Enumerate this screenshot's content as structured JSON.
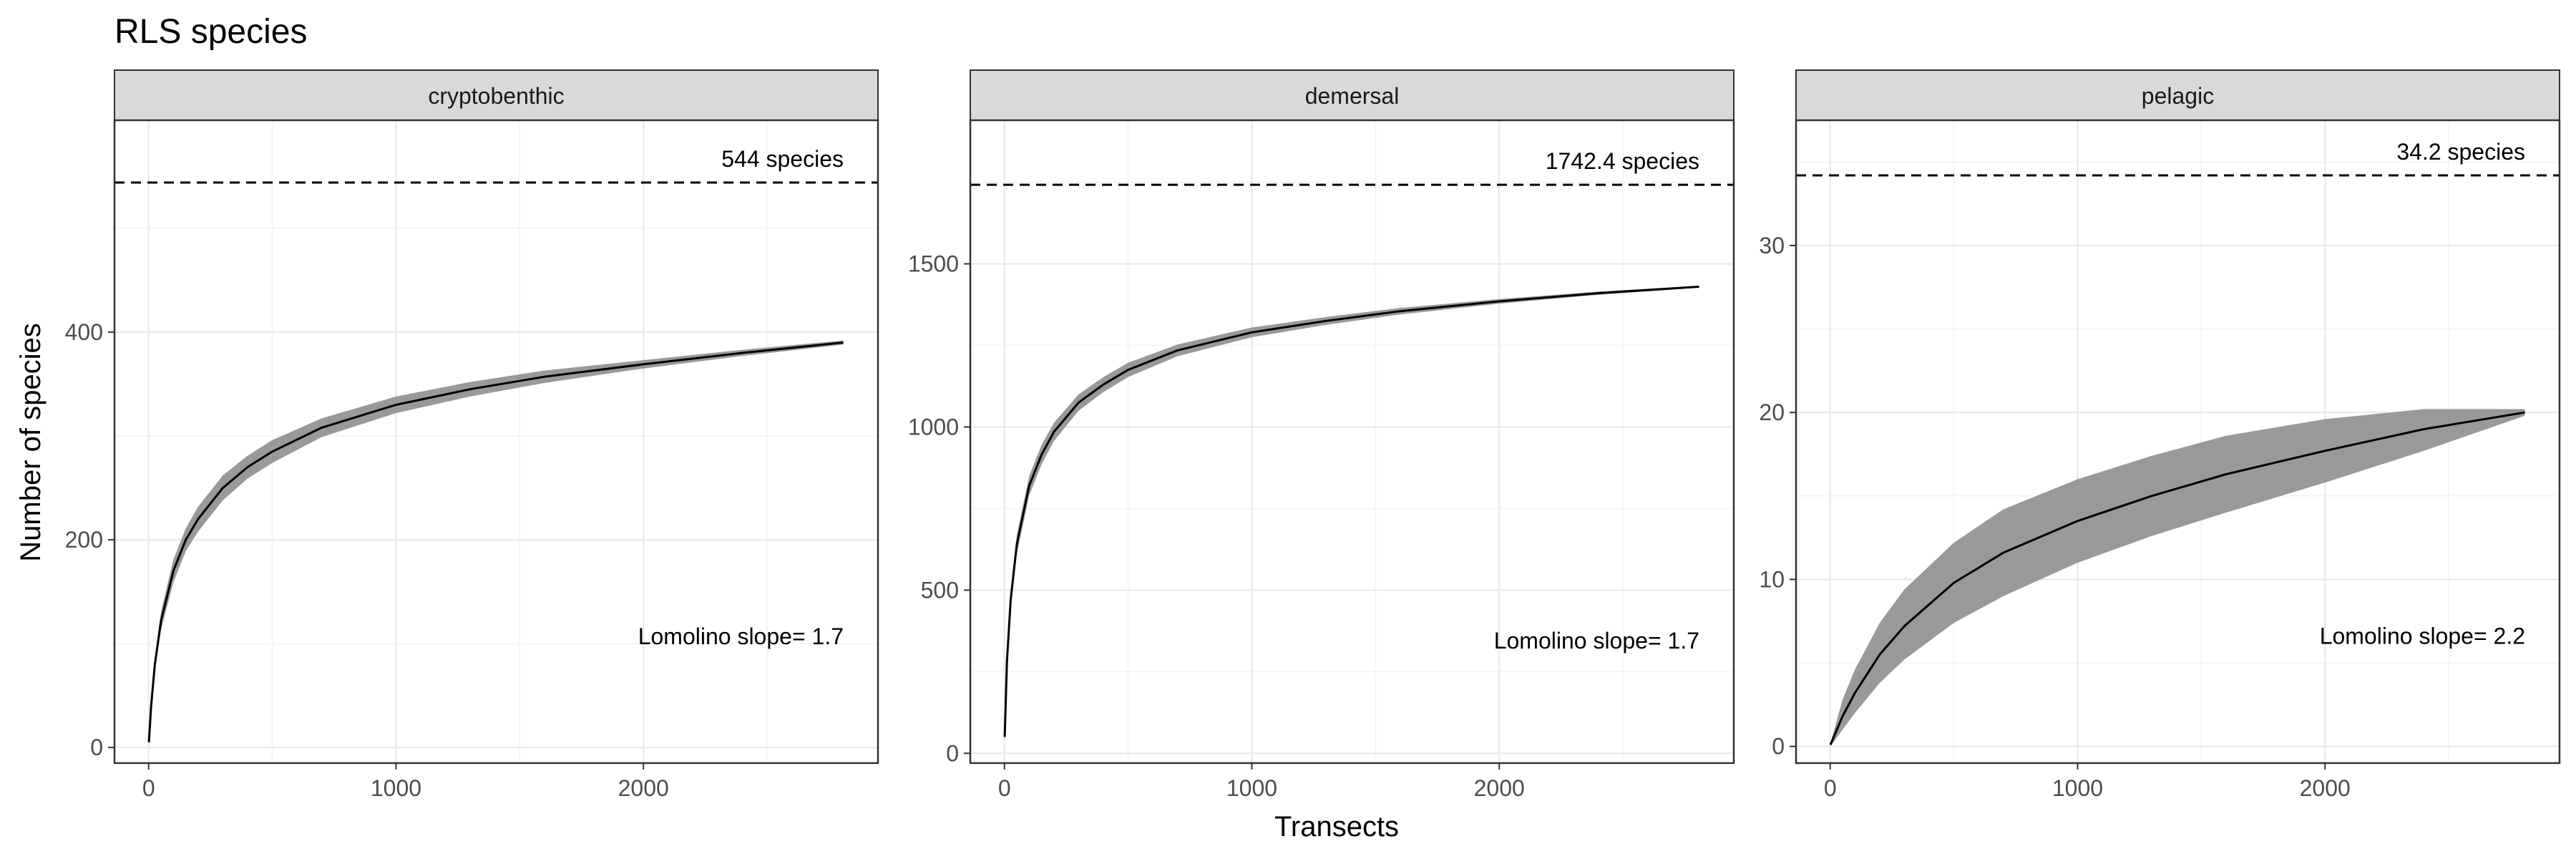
{
  "chart_data": {
    "type": "line",
    "title": "RLS species",
    "xlabel": "Transects",
    "ylabel": "Number of species",
    "grid": true,
    "colors": {
      "panel_border": "#333333",
      "strip_fill": "#d9d9d9",
      "grid_major": "#ebebeb",
      "grid_minor": "#f5f5f5",
      "line": "#000000",
      "ribbon": "#999999",
      "tick_text": "#4d4d4d"
    },
    "facets": [
      {
        "label": "cryptobenthic",
        "xlim": [
          -138,
          2948
        ],
        "ylim": [
          -15,
          604
        ],
        "xticks": [
          0,
          1000,
          2000
        ],
        "yticks": [
          0,
          200,
          400
        ],
        "asymptote": 544,
        "asymptote_label": "544 species",
        "slope_label": "Lomolino slope= 1.7",
        "slope_label_y": 107,
        "series": [
          {
            "x": [
              1,
              10,
              25,
              50,
              100,
              150,
              200,
              300,
              400,
              500,
              700,
              1000,
              1300,
              1600,
              2000,
              2400,
              2808
            ],
            "y": [
              5,
              40,
              80,
              122,
              170,
              200,
              220,
              250,
              270,
              285,
              308,
              330,
              345,
              357,
              369,
              380,
              390
            ],
            "lower": [
              4,
              36,
              74,
              113,
              159,
              189,
              208,
              238,
              259,
              274,
              299,
              322,
              338,
              351,
              365,
              377,
              388
            ],
            "upper": [
              6,
              44,
              86,
              131,
              181,
              211,
              232,
              262,
              281,
              296,
              317,
              338,
              352,
              363,
              373,
              383,
              392
            ]
          }
        ]
      },
      {
        "label": "demersal",
        "xlim": [
          -138,
          2948
        ],
        "ylim": [
          -30,
          1940
        ],
        "xticks": [
          0,
          1000,
          2000
        ],
        "yticks": [
          0,
          500,
          1000,
          1500
        ],
        "asymptote": 1742.4,
        "asymptote_label": "1742.4 species",
        "slope_label": "Lomolino slope= 1.7",
        "slope_label_y": 345,
        "series": [
          {
            "x": [
              1,
              10,
              25,
              50,
              100,
              150,
              200,
              300,
              400,
              500,
              700,
              1000,
              1300,
              1600,
              2000,
              2400,
              2808
            ],
            "y": [
              50,
              280,
              470,
              640,
              820,
              915,
              985,
              1075,
              1130,
              1175,
              1235,
              1290,
              1325,
              1355,
              1385,
              1410,
              1430
            ],
            "lower": [
              40,
              255,
              440,
              610,
              790,
              885,
              957,
              1050,
              1107,
              1153,
              1217,
              1275,
              1313,
              1345,
              1378,
              1405,
              1427
            ],
            "upper": [
              60,
              305,
              500,
              670,
              850,
              945,
              1013,
              1100,
              1153,
              1197,
              1253,
              1305,
              1337,
              1365,
              1392,
              1415,
              1433
            ]
          }
        ]
      },
      {
        "label": "pelagic",
        "xlim": [
          -138,
          2948
        ],
        "ylim": [
          -1.0,
          37.5
        ],
        "xticks": [
          0,
          1000,
          2000
        ],
        "yticks": [
          0,
          10,
          20,
          30
        ],
        "asymptote": 34.2,
        "asymptote_label": "34.2 species",
        "slope_label": "Lomolino slope= 2.2",
        "slope_label_y": 6.6,
        "series": [
          {
            "x": [
              1,
              50,
              100,
              200,
              300,
              500,
              700,
              1000,
              1300,
              1600,
              2000,
              2400,
              2808
            ],
            "y": [
              0.1,
              1.8,
              3.2,
              5.5,
              7.2,
              9.8,
              11.6,
              13.5,
              15.0,
              16.3,
              17.7,
              19.0,
              20.0
            ],
            "lower": [
              0.0,
              1.0,
              2.0,
              3.8,
              5.2,
              7.4,
              9.0,
              11.0,
              12.6,
              14.0,
              15.8,
              17.7,
              19.8
            ],
            "upper": [
              0.2,
              2.8,
              4.6,
              7.4,
              9.4,
              12.2,
              14.2,
              16.0,
              17.4,
              18.6,
              19.6,
              20.2,
              20.2
            ]
          }
        ]
      }
    ]
  }
}
